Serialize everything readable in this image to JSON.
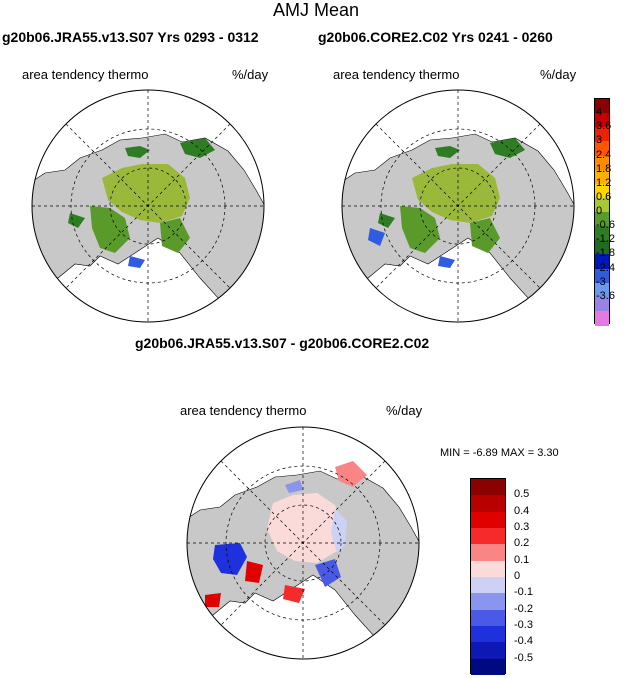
{
  "header": {
    "title": "AMJ Mean"
  },
  "panels": {
    "left": {
      "title": "g20b06.JRA55.v13.S07  Yrs 0293 - 0312",
      "variable": "area tendency thermo",
      "units": "%/day"
    },
    "right": {
      "title": "g20b06.CORE2.C02  Yrs 0241 - 0260",
      "variable": "area tendency thermo",
      "units": "%/day"
    },
    "diff": {
      "title": "g20b06.JRA55.v13.S07 - g20b06.CORE2.C02",
      "variable": "area tendency thermo",
      "units": "%/day",
      "minmax": "MIN =  -6.89 MAX =    3.30"
    }
  },
  "legend_top": {
    "colors": [
      "#8b0000",
      "#c80000",
      "#ee2200",
      "#ff5500",
      "#ff8c00",
      "#ffb000",
      "#ffd700",
      "#a8c83a",
      "#5a9a2a",
      "#2e7d22",
      "#1f6b1f",
      "#0018b8",
      "#2f5ce0",
      "#6c98ef",
      "#9a82e6",
      "#e27ae2"
    ],
    "labels": [
      "4",
      "3.6",
      "3",
      "2.4",
      "1.8",
      "1.2",
      "0.6",
      "0",
      "-0.6",
      "-1.2",
      "-1.8",
      "-2.4",
      "-3",
      "-3.6"
    ]
  },
  "legend_diff": {
    "colors": [
      "#8b0000",
      "#b80000",
      "#e00000",
      "#f52a2a",
      "#f98585",
      "#fbdada",
      "#cdd2f5",
      "#8a95ed",
      "#4a5ae6",
      "#1f30dd",
      "#0d18b5",
      "#000a80"
    ],
    "labels": [
      "0.5",
      "0.4",
      "0.3",
      "0.2",
      "0.1",
      "0",
      "-0.1",
      "-0.2",
      "-0.3",
      "-0.4",
      "-0.5"
    ]
  }
}
